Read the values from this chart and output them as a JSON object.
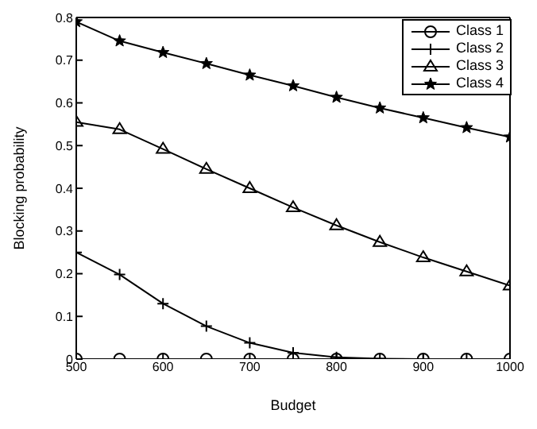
{
  "chart_data": {
    "type": "line",
    "xlabel": "Budget",
    "ylabel": "Blocking probability",
    "x": [
      500,
      550,
      600,
      650,
      700,
      750,
      800,
      850,
      900,
      950,
      1000
    ],
    "series": [
      {
        "name": "Class 1",
        "color": "#000000",
        "marker": "circle",
        "values": [
          0,
          0,
          0,
          0,
          0,
          0,
          0,
          0,
          0,
          0,
          0
        ]
      },
      {
        "name": "Class 2",
        "color": "#000000",
        "marker": "cross",
        "values": [
          0.25,
          0.198,
          0.13,
          0.077,
          0.038,
          0.015,
          0.004,
          0.001,
          0,
          0,
          0
        ]
      },
      {
        "name": "Class 3",
        "color": "#000000",
        "marker": "triangle",
        "values": [
          0.555,
          0.538,
          0.492,
          0.445,
          0.4,
          0.355,
          0.313,
          0.274,
          0.238,
          0.205,
          0.172
        ]
      },
      {
        "name": "Class 4",
        "color": "#000000",
        "marker": "star",
        "values": [
          0.79,
          0.745,
          0.718,
          0.692,
          0.665,
          0.64,
          0.613,
          0.588,
          0.565,
          0.542,
          0.52
        ]
      }
    ],
    "xlim": [
      500,
      1000
    ],
    "xticks": [
      500,
      600,
      700,
      800,
      900,
      1000
    ],
    "ylim": [
      0,
      0.8
    ],
    "yticks": [
      0,
      0.1,
      0.2,
      0.3,
      0.4,
      0.5,
      0.6,
      0.7,
      0.8
    ],
    "grid": false,
    "legend": "top right",
    "line_style": "solid"
  }
}
